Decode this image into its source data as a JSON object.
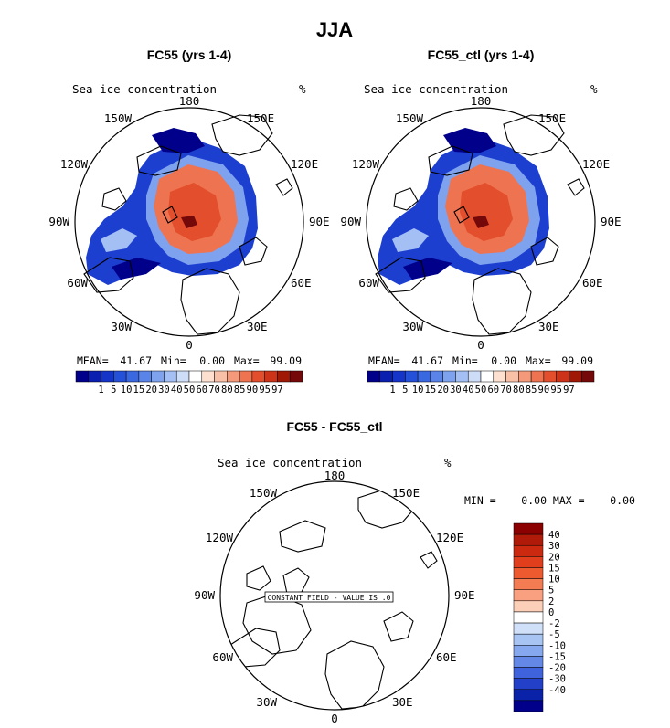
{
  "title": "JJA",
  "panels": [
    {
      "title": "FC55 (yrs 1-4)",
      "variable": "Sea ice concentration",
      "unit": "%",
      "stats": {
        "mean_label": "MEAN=",
        "mean": "41.67",
        "min_label": "Min=",
        "min": "0.00",
        "max_label": "Max=",
        "max": "99.09"
      }
    },
    {
      "title": "FC55_ctl (yrs 1-4)",
      "variable": "Sea ice concentration",
      "unit": "%",
      "stats": {
        "mean_label": "MEAN=",
        "mean": "41.67",
        "min_label": "Min=",
        "min": "0.00",
        "max_label": "Max=",
        "max": "99.09"
      }
    },
    {
      "title": "FC55 - FC55_ctl",
      "variable": "Sea ice concentration",
      "unit": "%",
      "stats_text": "MIN =    0.00 MAX =    0.00",
      "note": "CONSTANT FIELD - VALUE IS .0"
    }
  ],
  "lon_labels": [
    "180",
    "150E",
    "120E",
    "90E",
    "60E",
    "30E",
    "0",
    "30W",
    "60W",
    "90W",
    "120W",
    "150W"
  ],
  "chart_data": [
    {
      "type": "heatmap",
      "projection": "north polar stereographic",
      "title": "FC55 (yrs 1-4)",
      "colorbar": {
        "levels": [
          "1",
          "5",
          "10",
          "15",
          "20",
          "30",
          "40",
          "50",
          "60",
          "70",
          "80",
          "85",
          "90",
          "95",
          "97"
        ],
        "colors": [
          "#00008b",
          "#0a1fb0",
          "#1535c9",
          "#2550d8",
          "#3a68e0",
          "#5a84e8",
          "#7ea2ee",
          "#a3bff3",
          "#cddcf7",
          "#ffffff",
          "#fde0d0",
          "#f9c0a8",
          "#f49a7a",
          "#ee7350",
          "#e34e2c",
          "#cc3318",
          "#a01806",
          "#750808"
        ]
      },
      "stats": {
        "mean": 41.67,
        "min": 0.0,
        "max": 99.09
      }
    },
    {
      "type": "heatmap",
      "projection": "north polar stereographic",
      "title": "FC55_ctl (yrs 1-4)",
      "colorbar": {
        "levels": [
          "1",
          "5",
          "10",
          "15",
          "20",
          "30",
          "40",
          "50",
          "60",
          "70",
          "80",
          "85",
          "90",
          "95",
          "97"
        ]
      },
      "stats": {
        "mean": 41.67,
        "min": 0.0,
        "max": 99.09
      }
    },
    {
      "type": "heatmap",
      "projection": "north polar stereographic",
      "title": "FC55 - FC55_ctl",
      "colorbar": {
        "levels": [
          "40",
          "30",
          "20",
          "15",
          "10",
          "5",
          "2",
          "0",
          "-2",
          "-5",
          "-10",
          "-15",
          "-20",
          "-30",
          "-40"
        ],
        "colors": [
          "#8b0000",
          "#b01a08",
          "#cc2a10",
          "#e03e1c",
          "#ee5a30",
          "#f47c52",
          "#f8a080",
          "#fcd0b8",
          "#ffffff",
          "#d0e0f8",
          "#a8c4f2",
          "#86a8ee",
          "#6488e6",
          "#3f63dc",
          "#2240c8",
          "#0a22a8",
          "#00008b"
        ]
      },
      "stats": {
        "min": 0.0,
        "max": 0.0
      }
    }
  ]
}
